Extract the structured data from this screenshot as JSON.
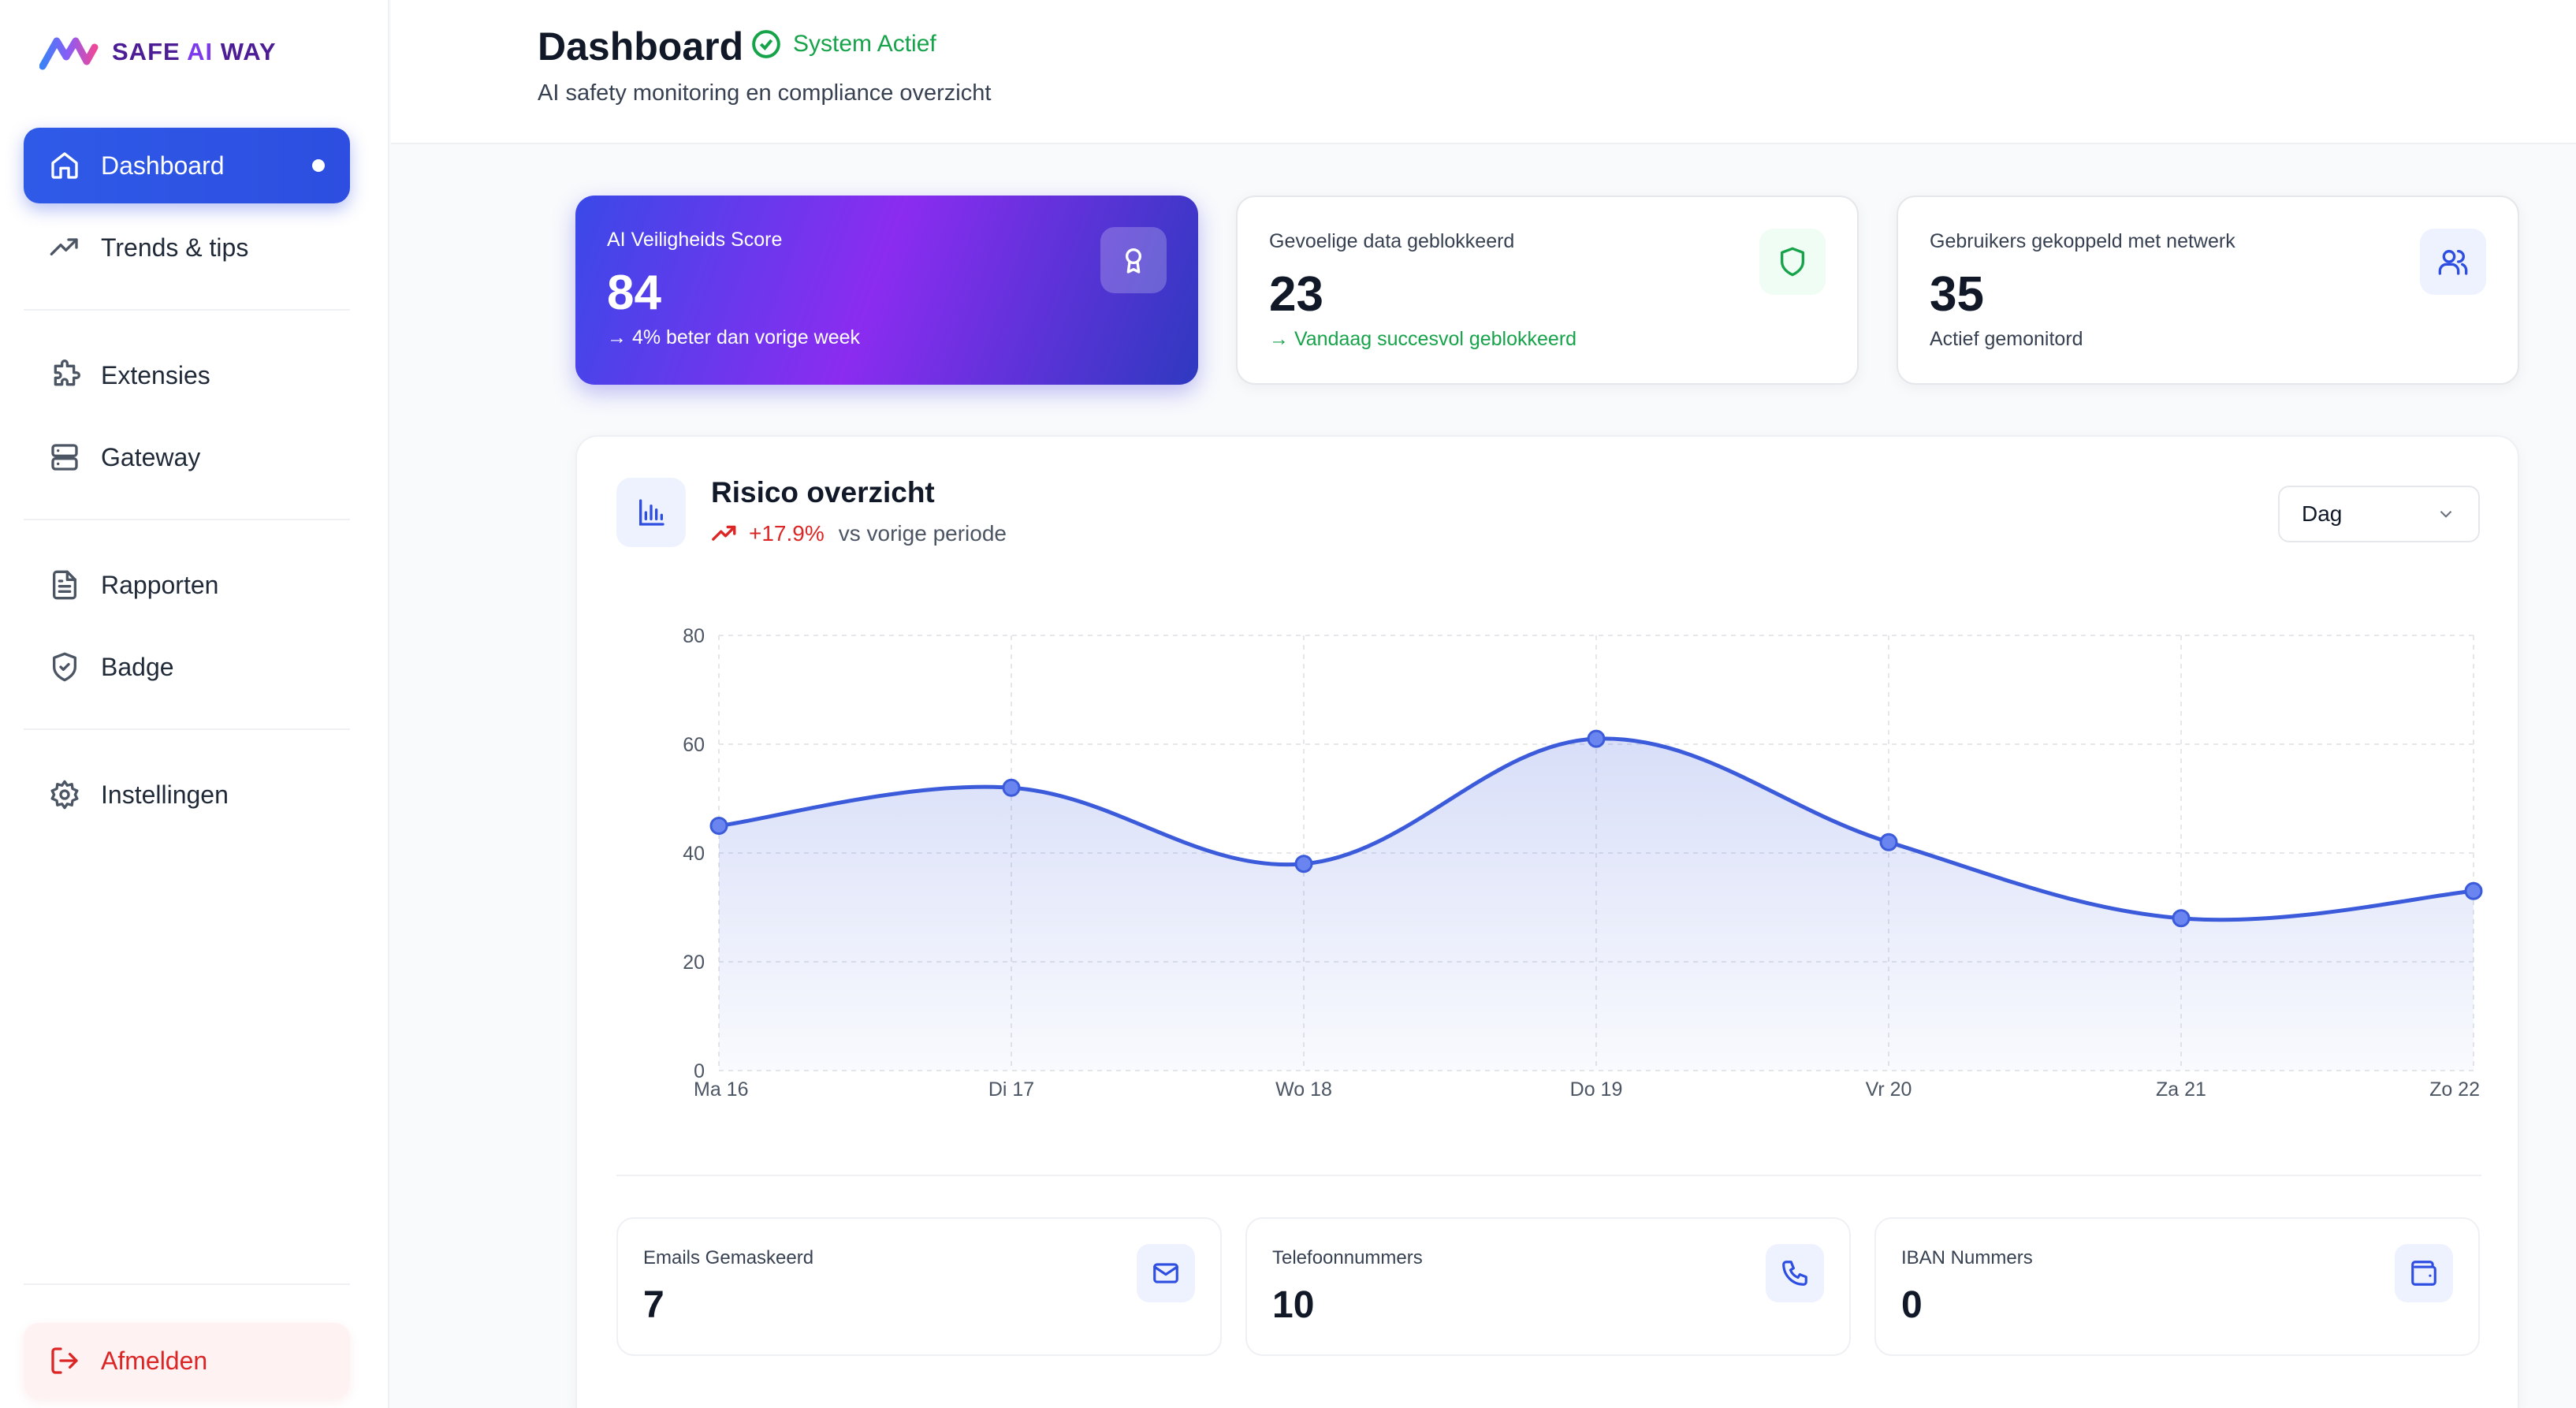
{
  "app": {
    "logo_prefix": "SAFE ",
    "logo_accent": "AI",
    "logo_suffix": " WAY"
  },
  "sidebar": {
    "items": [
      {
        "label": "Dashboard",
        "icon": "home-icon"
      },
      {
        "label": "Trends & tips",
        "icon": "trending-up-icon"
      },
      {
        "label": "Extensies",
        "icon": "puzzle-icon"
      },
      {
        "label": "Gateway",
        "icon": "server-icon"
      },
      {
        "label": "Rapporten",
        "icon": "document-icon"
      },
      {
        "label": "Badge",
        "icon": "shield-check-icon"
      },
      {
        "label": "Instellingen",
        "icon": "gear-icon"
      }
    ],
    "logout_label": "Afmelden"
  },
  "header": {
    "title": "Dashboard",
    "status": "System Actief",
    "subtitle": "AI safety monitoring en compliance overzicht"
  },
  "stats": [
    {
      "label": "AI Veiligheids Score",
      "value": "84",
      "note": "→ 4% beter dan vorige week",
      "icon": "award-icon"
    },
    {
      "label": "Gevoelige data geblokkeerd",
      "value": "23",
      "note": "→ Vandaag succesvol geblokkeerd",
      "icon": "shield-icon"
    },
    {
      "label": "Gebruikers gekoppeld met netwerk",
      "value": "35",
      "note": "Actief gemonitord",
      "icon": "users-icon"
    }
  ],
  "risk": {
    "title": "Risico overzicht",
    "change": "+17.9%",
    "change_label": "vs vorige periode",
    "period_select": "Dag"
  },
  "chart_data": {
    "type": "area",
    "categories": [
      "Ma 16",
      "Di 17",
      "Wo 18",
      "Do 19",
      "Vr 20",
      "Za 21",
      "Zo 22"
    ],
    "values": [
      45,
      52,
      38,
      61,
      42,
      28,
      33
    ],
    "ylim": [
      0,
      80
    ],
    "yticks": [
      0,
      20,
      40,
      60,
      80
    ],
    "grid": true,
    "color": "#3b5bdb"
  },
  "mini_stats": [
    {
      "label": "Emails Gemaskeerd",
      "value": "7",
      "icon": "mail-icon"
    },
    {
      "label": "Telefoonnummers",
      "value": "10",
      "icon": "phone-icon"
    },
    {
      "label": "IBAN Nummers",
      "value": "0",
      "icon": "wallet-icon"
    }
  ]
}
